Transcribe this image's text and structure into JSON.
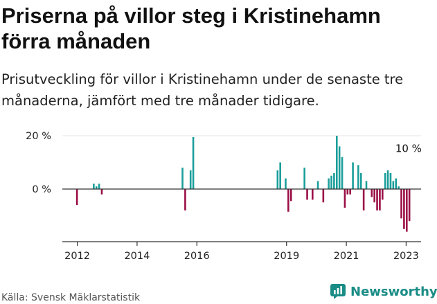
{
  "title": "Priserna på villor steg i Kristinehamn förra månaden",
  "subtitle": "Prisutveckling för villor i Kristinehamn under de senaste tre månaderna, jämfört med tre månader tidigare.",
  "source": "Källa: Svensk Mäklarstatistik",
  "brand": {
    "name": "Newsworthy",
    "icon": "newsworthy-logo-icon"
  },
  "colors": {
    "positive": "#1a9e9a",
    "negative": "#9b0f46",
    "axis": "#333333",
    "text": "#222222"
  },
  "chart_data": {
    "type": "bar",
    "title": "Priserna på villor steg i Kristinehamn förra månaden",
    "ylim": [
      -17,
      21
    ],
    "xlim": [
      2011.5,
      2023.5
    ],
    "yticks": [
      {
        "value": 20,
        "label": "20 %"
      },
      {
        "value": 0,
        "label": "0 %"
      }
    ],
    "xticks": [
      {
        "value": 2012,
        "label": "2012"
      },
      {
        "value": 2014,
        "label": "2014"
      },
      {
        "value": 2016,
        "label": "2016"
      },
      {
        "value": 2019,
        "label": "2019"
      },
      {
        "value": 2021,
        "label": "2021"
      },
      {
        "value": 2023,
        "label": "2023"
      }
    ],
    "annotation": {
      "x": 2023.08,
      "y": 10,
      "label": "10 %"
    },
    "series": [
      {
        "x": [
          2011.99,
          2012.55,
          2012.64,
          2012.73,
          2012.82,
          2015.52,
          2015.61,
          2015.79,
          2015.88,
          2018.7,
          2018.79,
          2018.97,
          2019.06,
          2019.15,
          2019.6,
          2019.69,
          2019.87,
          2020.05,
          2020.23,
          2020.41,
          2020.5,
          2020.59,
          2020.68,
          2020.77,
          2020.86,
          2020.95,
          2021.04,
          2021.13,
          2021.22,
          2021.4,
          2021.49,
          2021.58,
          2021.67,
          2021.85,
          2021.94,
          2022.03,
          2022.12,
          2022.21,
          2022.3,
          2022.39,
          2022.48,
          2022.57,
          2022.66,
          2022.75,
          2022.84,
          2022.93,
          2023.02,
          2023.11
        ],
        "values": [
          -6,
          2,
          1,
          2,
          -2,
          8,
          -8,
          7,
          19.5,
          7,
          10,
          4,
          -8.5,
          -4.5,
          8,
          -4,
          -4,
          3,
          -5,
          4,
          5,
          6,
          20,
          16,
          12,
          -7,
          -2,
          -2,
          10,
          9,
          6,
          -8,
          3,
          -3,
          -5,
          -8,
          -8,
          -4,
          6,
          7,
          6,
          3,
          4,
          1,
          -11,
          -15,
          -16,
          -12
        ]
      }
    ]
  }
}
